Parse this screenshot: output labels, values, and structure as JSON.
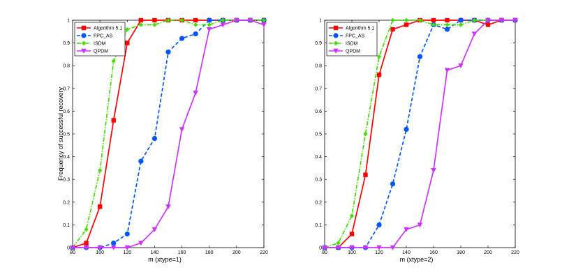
{
  "chart_data": [
    {
      "type": "line",
      "xlabel": "m      (xtype=1)",
      "ylabel": "Frequency of successful recovery",
      "xlim": [
        80,
        220
      ],
      "ylim": [
        0,
        1
      ],
      "xticks": [
        80,
        100,
        120,
        140,
        160,
        180,
        200,
        220
      ],
      "yticks": [
        0,
        0.1,
        0.2,
        0.3,
        0.4,
        0.5,
        0.6,
        0.7,
        0.8,
        0.9,
        1
      ],
      "ytick_labels": [
        "0",
        "0.1",
        "0.2",
        "0.3",
        "0.4",
        "0.5",
        "0.6",
        "0.7",
        "0.8",
        "0.9",
        "1"
      ],
      "legend_position": "top-left",
      "series": [
        {
          "name": "Algorithm 5.1",
          "color": "#ff0000",
          "dash": "solid",
          "marker": "square",
          "x": [
            80,
            90,
            100,
            110,
            120,
            130,
            140,
            150,
            160,
            170,
            180,
            190,
            200,
            210,
            220
          ],
          "y": [
            0,
            0.02,
            0.18,
            0.56,
            0.9,
            1,
            1,
            1,
            1,
            1,
            1,
            1,
            1,
            1,
            1
          ]
        },
        {
          "name": "FPC_AS",
          "color": "#0055ff",
          "dash": "dashed",
          "marker": "circle",
          "x": [
            80,
            90,
            100,
            110,
            120,
            130,
            140,
            150,
            160,
            170,
            180,
            190,
            200,
            210,
            220
          ],
          "y": [
            0,
            0,
            0,
            0.02,
            0.06,
            0.38,
            0.48,
            0.86,
            0.92,
            0.94,
            1,
            1,
            1,
            1,
            1
          ]
        },
        {
          "name": "ISDM",
          "color": "#44dd00",
          "dash": "dashdot",
          "marker": "diamond",
          "x": [
            80,
            90,
            100,
            110,
            120,
            130,
            140,
            150,
            160,
            170,
            180,
            190,
            200,
            210,
            220
          ],
          "y": [
            0,
            0.08,
            0.34,
            0.82,
            0.96,
            0.98,
            0.98,
            1,
            1,
            0.98,
            0.98,
            1,
            1,
            1,
            1
          ]
        },
        {
          "name": "QPDM",
          "color": "#cc33ff",
          "dash": "solid",
          "marker": "triangle-down",
          "x": [
            80,
            90,
            100,
            110,
            120,
            130,
            140,
            150,
            160,
            170,
            180,
            190,
            200,
            210,
            220
          ],
          "y": [
            0,
            0,
            0,
            0,
            0,
            0.02,
            0.08,
            0.18,
            0.52,
            0.68,
            0.96,
            0.98,
            1,
            1,
            0.98
          ]
        }
      ]
    },
    {
      "type": "line",
      "xlabel": "m      (xtype=2)",
      "ylabel": "",
      "xlim": [
        80,
        220
      ],
      "ylim": [
        0,
        1
      ],
      "xticks": [
        80,
        100,
        120,
        140,
        160,
        180,
        200,
        220
      ],
      "yticks": [
        0,
        0.1,
        0.2,
        0.3,
        0.4,
        0.5,
        0.6,
        0.7,
        0.8,
        0.9,
        1
      ],
      "ytick_labels": [
        "0",
        "0.1",
        "0.2",
        "0.3",
        "0.4",
        "0.5",
        "0.6",
        "0.7",
        "0.8",
        "0.9",
        "1"
      ],
      "legend_position": "top-left",
      "series": [
        {
          "name": "Algorithm 5.1",
          "color": "#ff0000",
          "dash": "solid",
          "marker": "square",
          "x": [
            80,
            90,
            100,
            110,
            120,
            130,
            140,
            150,
            160,
            170,
            180,
            190,
            200,
            210,
            220
          ],
          "y": [
            0,
            0,
            0.06,
            0.32,
            0.76,
            0.96,
            0.98,
            1,
            1,
            1,
            1,
            1,
            0.98,
            1,
            1
          ]
        },
        {
          "name": "FPC_AS",
          "color": "#0055ff",
          "dash": "dashed",
          "marker": "circle",
          "x": [
            80,
            90,
            100,
            110,
            120,
            130,
            140,
            150,
            160,
            170,
            180,
            190,
            200,
            210,
            220
          ],
          "y": [
            0,
            0,
            0,
            0,
            0.1,
            0.28,
            0.52,
            0.84,
            0.98,
            0.96,
            1,
            1,
            1,
            1,
            1
          ]
        },
        {
          "name": "ISDM",
          "color": "#44dd00",
          "dash": "dashdot",
          "marker": "diamond",
          "x": [
            80,
            90,
            100,
            110,
            120,
            130,
            140,
            150,
            160,
            170,
            180,
            190,
            200,
            210,
            220
          ],
          "y": [
            0,
            0.02,
            0.14,
            0.5,
            0.84,
            1,
            1,
            1,
            0.98,
            0.98,
            0.98,
            1,
            1,
            1,
            1
          ]
        },
        {
          "name": "QPDM",
          "color": "#cc33ff",
          "dash": "solid",
          "marker": "triangle-down",
          "x": [
            80,
            90,
            100,
            110,
            120,
            130,
            140,
            150,
            160,
            170,
            180,
            190,
            200,
            210,
            220
          ],
          "y": [
            0,
            0,
            0,
            0,
            0,
            0,
            0.08,
            0.1,
            0.34,
            0.78,
            0.8,
            0.94,
            1,
            1,
            1
          ]
        }
      ]
    }
  ]
}
